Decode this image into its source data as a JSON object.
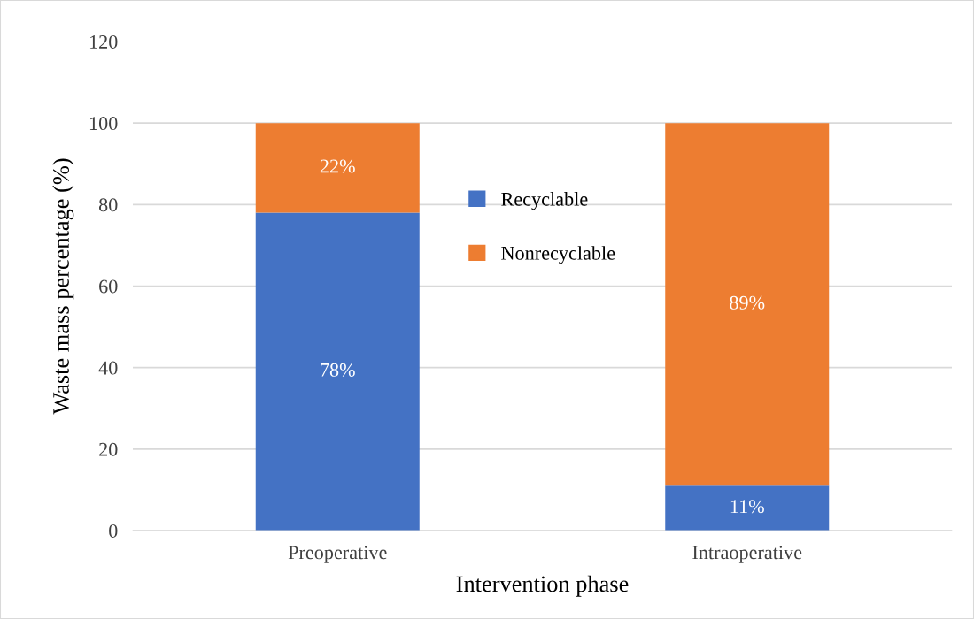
{
  "chart_data": {
    "type": "bar",
    "stacked": true,
    "xlabel": "Intervention phase",
    "ylabel": "Waste mass percentage (%)",
    "categories": [
      "Preoperative",
      "Intraoperative"
    ],
    "series": [
      {
        "name": "Recyclable",
        "color": "#4472c4",
        "values": [
          78,
          11
        ],
        "value_labels": [
          "78%",
          "11%"
        ]
      },
      {
        "name": "Nonrecyclable",
        "color": "#ed7d31",
        "values": [
          22,
          89
        ],
        "value_labels": [
          "22%",
          "89%"
        ]
      }
    ],
    "ylim": [
      0,
      120
    ],
    "yticks": [
      0,
      20,
      40,
      60,
      80,
      100,
      120
    ],
    "grid": "y",
    "legend": "top"
  }
}
